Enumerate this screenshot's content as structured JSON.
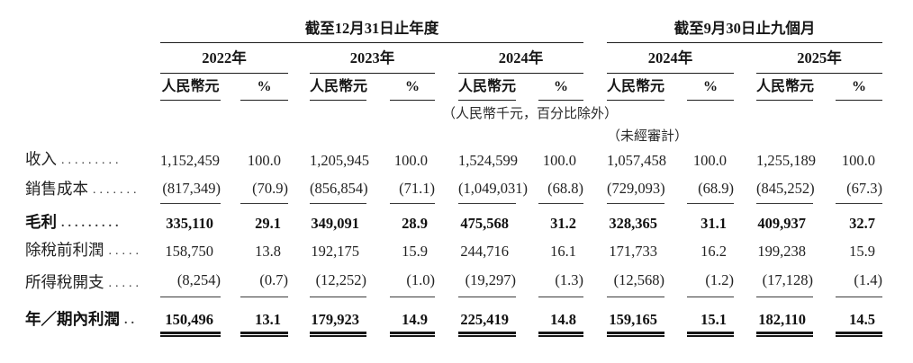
{
  "page": {
    "background": "#ffffff",
    "text_color": "#1f1f1f",
    "rule_color": "#1c1c1c"
  },
  "table": {
    "sections": [
      {
        "title": "截至12月31日止年度"
      },
      {
        "title": "截至9月30日止九個月"
      }
    ],
    "groups": [
      {
        "year": "2022年"
      },
      {
        "year": "2023年"
      },
      {
        "year": "2024年"
      },
      {
        "year": "2024年"
      },
      {
        "year": "2025年"
      }
    ],
    "subheaders": {
      "amount": "人民幣元",
      "pct": "%"
    },
    "notes": {
      "unit_note": "（人民幣千元，百分比除外）",
      "unaudited_note": "（未經審計）"
    },
    "rows": [
      {
        "label": "收入",
        "dots": ".........",
        "bold": false,
        "rule": "none",
        "values": [
          "1,152,459",
          "100.0",
          "1,205,945",
          "100.0",
          "1,524,599",
          "100.0",
          "1,057,458",
          "100.0",
          "1,255,189",
          "100.0"
        ]
      },
      {
        "label": "銷售成本",
        "dots": ".......",
        "bold": false,
        "rule": "single",
        "values": [
          "(817,349)",
          "(70.9)",
          "(856,854)",
          "(71.1)",
          "(1,049,031)",
          "(68.8)",
          "(729,093)",
          "(68.9)",
          "(845,252)",
          "(67.3)"
        ]
      },
      {
        "label": "毛利",
        "dots": ".........",
        "bold": true,
        "rule": "none",
        "values": [
          "335,110",
          "29.1",
          "349,091",
          "28.9",
          "475,568",
          "31.2",
          "328,365",
          "31.1",
          "409,937",
          "32.7"
        ]
      },
      {
        "label": "除稅前利潤",
        "dots": ".....",
        "bold": false,
        "rule": "none",
        "values": [
          "158,750",
          "13.8",
          "192,175",
          "15.9",
          "244,716",
          "16.1",
          "171,733",
          "16.2",
          "199,238",
          "15.9"
        ]
      },
      {
        "label": "所得稅開支",
        "dots": ".....",
        "bold": false,
        "rule": "single",
        "values": [
          "(8,254)",
          "(0.7)",
          "(12,252)",
          "(1.0)",
          "(19,297)",
          "(1.3)",
          "(12,568)",
          "(1.2)",
          "(17,128)",
          "(1.4)"
        ]
      },
      {
        "label": "年／期內利潤",
        "dots": "..",
        "bold": true,
        "rule": "double",
        "values": [
          "150,496",
          "13.1",
          "179,923",
          "14.9",
          "225,419",
          "14.8",
          "159,165",
          "15.1",
          "182,110",
          "14.5"
        ]
      }
    ]
  }
}
